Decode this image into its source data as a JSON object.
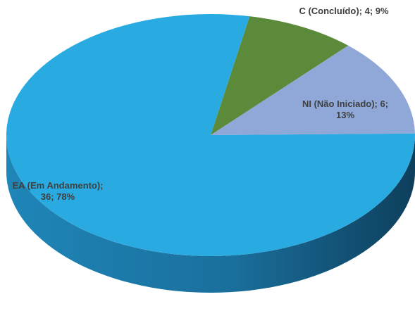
{
  "chart_data": {
    "type": "pie",
    "style": "3d",
    "title": "",
    "legend": false,
    "slices": [
      {
        "label": "C (Concluído)",
        "value": 4,
        "percent": 9,
        "color": "#5a8a3a",
        "label_lines": [
          "C (Concluído); 4; 9%"
        ]
      },
      {
        "label": "NI (Não Iniciado)",
        "value": 6,
        "percent": 13,
        "color": "#8fa8d8",
        "label_lines": [
          "NI (Não Iniciado); 6;",
          "13%"
        ]
      },
      {
        "label": "EA (Em Andamento)",
        "value": 36,
        "percent": 78,
        "color": "#29abe2",
        "label_lines": [
          "EA (Em Andamento);",
          "36; 78%"
        ]
      }
    ]
  }
}
